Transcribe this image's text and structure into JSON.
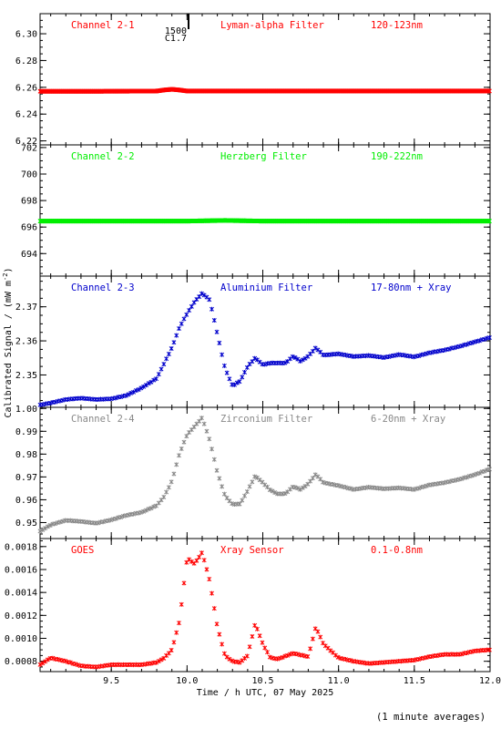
{
  "chart_data": {
    "type": "scatter",
    "ylabel": "Calibrated Signal / (mW m",
    "ylabel_sup": "-2",
    "ylabel_tail": ")",
    "xlabel": "Time / h UTC, 07 May 2025",
    "footnote": "(1 minute averages)",
    "xlim": [
      9.03,
      12.0
    ],
    "xticks": [
      9.5,
      10.0,
      10.5,
      11.0,
      11.5,
      12.0
    ],
    "xtick_labels": [
      "9.5",
      "10.0",
      "10.5",
      "11.0",
      "11.5",
      "12.0"
    ],
    "flare_marker": {
      "x": 10.01,
      "class_label": "C1.7",
      "time_label": "1500"
    },
    "panels": [
      {
        "channel": "Channel 2-1",
        "filter": "Lyman-alpha Filter",
        "band": "120-123nm",
        "color": "#ff0000",
        "ylim": [
          6.217,
          6.315
        ],
        "yticks": [
          6.22,
          6.24,
          6.26,
          6.28,
          6.3
        ],
        "ytick_labels": [
          "6.22",
          "6.24",
          "6.26",
          "6.28",
          "6.30"
        ],
        "points": [
          [
            9.03,
            6.257
          ],
          [
            9.4,
            6.257
          ],
          [
            9.8,
            6.2572
          ],
          [
            9.85,
            6.258
          ],
          [
            9.9,
            6.2585
          ],
          [
            9.95,
            6.258
          ],
          [
            10.0,
            6.2572
          ],
          [
            10.5,
            6.2572
          ],
          [
            11.0,
            6.2572
          ],
          [
            11.5,
            6.2572
          ],
          [
            12.0,
            6.2572
          ]
        ]
      },
      {
        "channel": "Channel 2-2",
        "filter": "Herzberg Filter",
        "band": "190-222nm",
        "color": "#00ee00",
        "ylim": [
          692.3,
          702.2
        ],
        "yticks": [
          694,
          696,
          698,
          700,
          702
        ],
        "ytick_labels": [
          "694",
          "696",
          "698",
          "700",
          "702"
        ],
        "points": [
          [
            9.03,
            696.45
          ],
          [
            9.5,
            696.45
          ],
          [
            10.0,
            696.45
          ],
          [
            10.25,
            696.5
          ],
          [
            10.5,
            696.45
          ],
          [
            11.0,
            696.45
          ],
          [
            11.5,
            696.45
          ],
          [
            12.0,
            696.45
          ]
        ]
      },
      {
        "channel": "Channel 2-3",
        "filter": "Aluminium Filter",
        "band": "17-80nm + Xray",
        "color": "#0000cc",
        "ylim": [
          2.3405,
          2.379
        ],
        "yticks": [
          2.35,
          2.36,
          2.37
        ],
        "ytick_labels": [
          "2.35",
          "2.36",
          "2.37"
        ],
        "points": [
          [
            9.03,
            2.3412
          ],
          [
            9.1,
            2.3418
          ],
          [
            9.2,
            2.3428
          ],
          [
            9.3,
            2.3432
          ],
          [
            9.4,
            2.3428
          ],
          [
            9.5,
            2.343
          ],
          [
            9.6,
            2.344
          ],
          [
            9.7,
            2.3462
          ],
          [
            9.8,
            2.349
          ],
          [
            9.85,
            2.3535
          ],
          [
            9.9,
            2.358
          ],
          [
            9.95,
            2.364
          ],
          [
            10.0,
            2.368
          ],
          [
            10.05,
            2.3715
          ],
          [
            10.1,
            2.374
          ],
          [
            10.15,
            2.372
          ],
          [
            10.2,
            2.362
          ],
          [
            10.25,
            2.352
          ],
          [
            10.3,
            2.3468
          ],
          [
            10.35,
            2.3482
          ],
          [
            10.4,
            2.3525
          ],
          [
            10.45,
            2.355
          ],
          [
            10.5,
            2.353
          ],
          [
            10.55,
            2.3535
          ],
          [
            10.6,
            2.3535
          ],
          [
            10.65,
            2.3535
          ],
          [
            10.7,
            2.3555
          ],
          [
            10.75,
            2.354
          ],
          [
            10.8,
            2.3555
          ],
          [
            10.85,
            2.358
          ],
          [
            10.9,
            2.3558
          ],
          [
            11.0,
            2.3562
          ],
          [
            11.1,
            2.3554
          ],
          [
            11.2,
            2.3557
          ],
          [
            11.3,
            2.3551
          ],
          [
            11.4,
            2.356
          ],
          [
            11.5,
            2.3553
          ],
          [
            11.6,
            2.3565
          ],
          [
            11.7,
            2.3573
          ],
          [
            11.8,
            2.3584
          ],
          [
            11.9,
            2.3597
          ],
          [
            12.0,
            2.361
          ]
        ]
      },
      {
        "channel": "Channel 2-4",
        "filter": "Zirconium Filter",
        "band": "6-20nm + Xray",
        "color": "#888888",
        "ylim": [
          0.943,
          1.0005
        ],
        "yticks": [
          0.95,
          0.96,
          0.97,
          0.98,
          0.99,
          1.0
        ],
        "ytick_labels": [
          "0.95",
          "0.96",
          "0.97",
          "0.98",
          "0.99",
          "1.00"
        ],
        "points": [
          [
            9.03,
            0.9462
          ],
          [
            9.1,
            0.949
          ],
          [
            9.2,
            0.951
          ],
          [
            9.3,
            0.9505
          ],
          [
            9.4,
            0.9497
          ],
          [
            9.5,
            0.9512
          ],
          [
            9.6,
            0.9532
          ],
          [
            9.7,
            0.9545
          ],
          [
            9.8,
            0.9575
          ],
          [
            9.85,
            0.9615
          ],
          [
            9.9,
            0.9682
          ],
          [
            9.95,
            0.9802
          ],
          [
            10.0,
            0.9885
          ],
          [
            10.05,
            0.9922
          ],
          [
            10.1,
            0.996
          ],
          [
            10.15,
            0.986
          ],
          [
            10.2,
            0.972
          ],
          [
            10.25,
            0.9618
          ],
          [
            10.3,
            0.958
          ],
          [
            10.35,
            0.9582
          ],
          [
            10.4,
            0.964
          ],
          [
            10.45,
            0.9705
          ],
          [
            10.5,
            0.9675
          ],
          [
            10.55,
            0.9642
          ],
          [
            10.6,
            0.9625
          ],
          [
            10.65,
            0.9627
          ],
          [
            10.7,
            0.9658
          ],
          [
            10.75,
            0.9645
          ],
          [
            10.8,
            0.967
          ],
          [
            10.85,
            0.9712
          ],
          [
            10.9,
            0.9675
          ],
          [
            11.0,
            0.9662
          ],
          [
            11.1,
            0.9645
          ],
          [
            11.2,
            0.9655
          ],
          [
            11.3,
            0.9648
          ],
          [
            11.4,
            0.9652
          ],
          [
            11.5,
            0.9645
          ],
          [
            11.6,
            0.9665
          ],
          [
            11.7,
            0.9675
          ],
          [
            11.8,
            0.969
          ],
          [
            11.9,
            0.971
          ],
          [
            12.0,
            0.9735
          ]
        ]
      },
      {
        "channel": "GOES",
        "filter": "Xray Sensor",
        "band": "0.1-0.8nm",
        "color": "#ff0000",
        "ylim": [
          0.00071,
          0.00187
        ],
        "yticks": [
          0.0008,
          0.001,
          0.0012,
          0.0014,
          0.0016,
          0.0018
        ],
        "ytick_labels": [
          "0.0008",
          "0.0010",
          "0.0012",
          "0.0014",
          "0.0016",
          "0.0018"
        ],
        "points": [
          [
            9.03,
            0.00077
          ],
          [
            9.1,
            0.00083
          ],
          [
            9.2,
            0.0008
          ],
          [
            9.3,
            0.00076
          ],
          [
            9.4,
            0.00075
          ],
          [
            9.5,
            0.00077
          ],
          [
            9.6,
            0.00077
          ],
          [
            9.7,
            0.00077
          ],
          [
            9.8,
            0.00079
          ],
          [
            9.85,
            0.00083
          ],
          [
            9.9,
            0.0009
          ],
          [
            9.95,
            0.00115
          ],
          [
            10.0,
            0.0017
          ],
          [
            10.05,
            0.00165
          ],
          [
            10.1,
            0.00175
          ],
          [
            10.15,
            0.0015
          ],
          [
            10.2,
            0.0011
          ],
          [
            10.25,
            0.00085
          ],
          [
            10.3,
            0.0008
          ],
          [
            10.35,
            0.00079
          ],
          [
            10.4,
            0.00085
          ],
          [
            10.45,
            0.00113
          ],
          [
            10.5,
            0.00095
          ],
          [
            10.55,
            0.00083
          ],
          [
            10.6,
            0.00082
          ],
          [
            10.7,
            0.00087
          ],
          [
            10.8,
            0.00084
          ],
          [
            10.85,
            0.0011
          ],
          [
            10.9,
            0.00095
          ],
          [
            11.0,
            0.00083
          ],
          [
            11.1,
            0.0008
          ],
          [
            11.2,
            0.00078
          ],
          [
            11.3,
            0.00079
          ],
          [
            11.4,
            0.0008
          ],
          [
            11.5,
            0.00081
          ],
          [
            11.6,
            0.00084
          ],
          [
            11.7,
            0.00086
          ],
          [
            11.8,
            0.00086
          ],
          [
            11.9,
            0.00089
          ],
          [
            12.0,
            0.0009
          ]
        ]
      }
    ]
  }
}
